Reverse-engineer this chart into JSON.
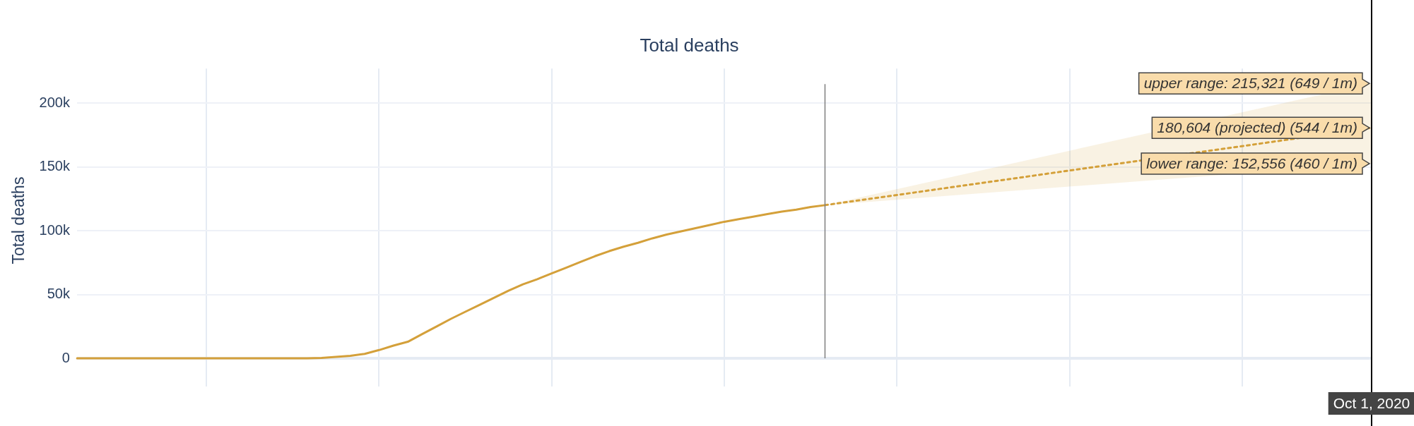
{
  "chart_data": {
    "type": "line",
    "title": "Total deaths",
    "ylabel": "Total deaths",
    "categories": [
      null,
      null,
      null,
      null,
      null,
      null,
      null,
      null,
      null,
      null,
      null,
      null,
      null,
      null,
      null,
      null,
      null,
      null,
      null,
      null,
      null,
      null,
      null,
      null,
      null,
      null,
      null,
      null,
      null,
      null,
      null,
      null,
      null,
      null,
      null,
      null,
      null,
      null,
      null,
      null,
      null,
      null,
      null,
      null,
      null,
      null,
      null,
      null,
      null,
      null,
      null,
      null,
      null,
      null,
      null,
      null,
      null,
      null,
      null,
      null,
      null,
      null,
      null,
      null,
      null,
      null,
      null,
      null,
      null,
      null,
      null,
      null,
      null,
      null,
      null,
      null,
      null,
      null,
      null,
      null,
      null,
      null,
      null,
      null,
      null,
      null,
      null,
      null,
      null,
      null,
      null
    ],
    "series": [
      {
        "color": "#d4a03a",
        "values": [
          0,
          0,
          0,
          0,
          0,
          0,
          0,
          0,
          0,
          0,
          0,
          0,
          0,
          0,
          0,
          0,
          0,
          300,
          1200,
          2000,
          3500,
          6500,
          10000,
          13000,
          19000,
          25000,
          31000,
          36500,
          42000,
          47500,
          53000,
          58000,
          62000,
          66500,
          71000,
          75500,
          80000,
          84000,
          87500,
          90500,
          94000,
          97000,
          99500,
          102000,
          104500,
          107000,
          109000,
          111000,
          113000,
          115000,
          116500,
          118500,
          120000,
          null,
          null,
          null,
          null,
          null,
          null,
          null,
          null,
          null,
          null,
          null,
          null,
          null,
          null,
          null,
          null,
          null,
          null,
          null,
          null,
          null,
          null,
          null,
          null,
          null,
          null,
          null,
          null,
          null,
          null,
          null,
          null,
          null,
          null,
          null,
          null,
          null,
          null
        ]
      },
      {
        "color": "#d4a03a",
        "line_style": "dotted",
        "values": [
          null,
          null,
          null,
          null,
          null,
          null,
          null,
          null,
          null,
          null,
          null,
          null,
          null,
          null,
          null,
          null,
          null,
          null,
          null,
          null,
          null,
          null,
          null,
          null,
          null,
          null,
          null,
          null,
          null,
          null,
          null,
          null,
          null,
          null,
          null,
          null,
          null,
          null,
          null,
          null,
          null,
          null,
          null,
          null,
          null,
          null,
          null,
          null,
          null,
          null,
          null,
          null,
          120000,
          null,
          null,
          null,
          null,
          null,
          null,
          null,
          null,
          null,
          null,
          null,
          null,
          null,
          null,
          null,
          null,
          null,
          null,
          null,
          null,
          null,
          null,
          null,
          null,
          null,
          null,
          null,
          null,
          null,
          null,
          null,
          null,
          null,
          null,
          null,
          null,
          null,
          180604
        ],
        "lower": [
          null,
          null,
          null,
          null,
          null,
          null,
          null,
          null,
          null,
          null,
          null,
          null,
          null,
          null,
          null,
          null,
          null,
          null,
          null,
          null,
          null,
          null,
          null,
          null,
          null,
          null,
          null,
          null,
          null,
          null,
          null,
          null,
          null,
          null,
          null,
          null,
          null,
          null,
          null,
          null,
          null,
          null,
          null,
          null,
          null,
          null,
          null,
          null,
          null,
          null,
          null,
          null,
          120000,
          null,
          null,
          null,
          null,
          null,
          null,
          null,
          null,
          null,
          null,
          null,
          null,
          null,
          null,
          null,
          null,
          null,
          null,
          null,
          null,
          null,
          null,
          null,
          null,
          null,
          null,
          null,
          null,
          null,
          null,
          null,
          null,
          null,
          null,
          null,
          null,
          null,
          152556
        ],
        "upper": [
          null,
          null,
          null,
          null,
          null,
          null,
          null,
          null,
          null,
          null,
          null,
          null,
          null,
          null,
          null,
          null,
          null,
          null,
          null,
          null,
          null,
          null,
          null,
          null,
          null,
          null,
          null,
          null,
          null,
          null,
          null,
          null,
          null,
          null,
          null,
          null,
          null,
          null,
          null,
          null,
          null,
          null,
          null,
          null,
          null,
          null,
          null,
          null,
          null,
          null,
          null,
          null,
          120000,
          null,
          null,
          null,
          null,
          null,
          null,
          null,
          null,
          null,
          null,
          null,
          null,
          null,
          null,
          null,
          null,
          null,
          null,
          null,
          null,
          null,
          null,
          null,
          null,
          null,
          null,
          null,
          null,
          null,
          null,
          null,
          null,
          null,
          null,
          null,
          null,
          null,
          215321
        ]
      }
    ],
    "ylim": [
      -11000,
      227000
    ],
    "yticks": [
      0,
      {
        "value": 50000,
        "label": "50k"
      },
      {
        "value": 100000,
        "label": "100k"
      },
      {
        "value": 150000,
        "label": "150k"
      },
      {
        "value": 200000,
        "label": "200k"
      }
    ],
    "grid": true,
    "legend": false,
    "marker": "none",
    "tick_labels": "y",
    "annotations": [
      "upper range: 215,321 (649 / 1m)",
      "180,604 (projected) (544 / 1m)",
      "lower range: 152,556 (460 / 1m)",
      "Oct 1, 2020"
    ]
  }
}
